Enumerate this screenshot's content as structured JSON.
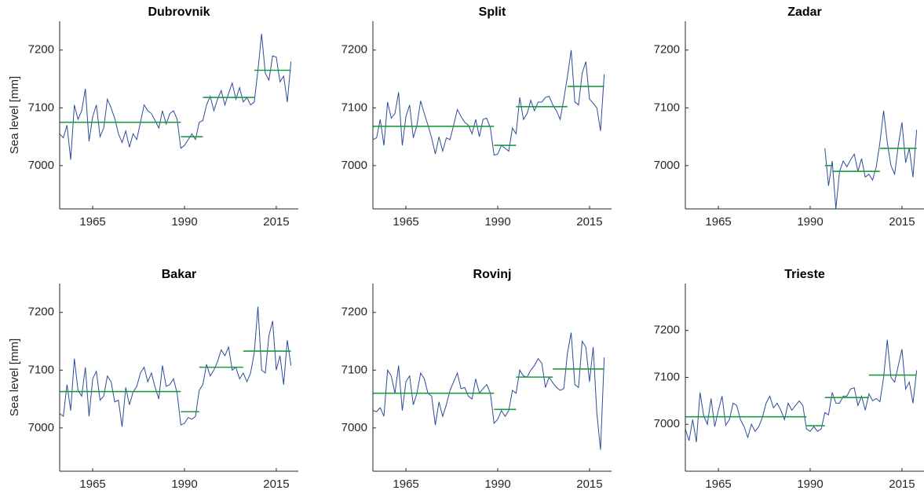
{
  "chart_data": [
    {
      "type": "line",
      "title": "Dubrovnik",
      "ylabel": "Sea level [mm]",
      "x": [
        1956,
        1957,
        1958,
        1959,
        1960,
        1961,
        1962,
        1963,
        1964,
        1965,
        1966,
        1967,
        1968,
        1969,
        1970,
        1971,
        1972,
        1973,
        1974,
        1975,
        1976,
        1977,
        1978,
        1979,
        1980,
        1981,
        1982,
        1983,
        1984,
        1985,
        1986,
        1987,
        1988,
        1989,
        1990,
        1991,
        1992,
        1993,
        1994,
        1995,
        1996,
        1997,
        1998,
        1999,
        2000,
        2001,
        2002,
        2003,
        2004,
        2005,
        2006,
        2007,
        2008,
        2009,
        2010,
        2011,
        2012,
        2013,
        2014,
        2015,
        2016,
        2017,
        2018,
        2019
      ],
      "series": [
        {
          "color": "#2a4d9b",
          "values": [
            7055,
            7048,
            7070,
            7010,
            7105,
            7080,
            7095,
            7133,
            7042,
            7085,
            7105,
            7050,
            7065,
            7115,
            7100,
            7082,
            7055,
            7040,
            7060,
            7032,
            7055,
            7045,
            7075,
            7105,
            7095,
            7090,
            7078,
            7065,
            7095,
            7072,
            7090,
            7095,
            7080,
            7030,
            7035,
            7045,
            7055,
            7045,
            7075,
            7078,
            7105,
            7120,
            7095,
            7115,
            7130,
            7105,
            7125,
            7143,
            7115,
            7135,
            7110,
            7118,
            7105,
            7110,
            7165,
            7228,
            7160,
            7148,
            7190,
            7188,
            7145,
            7155,
            7110,
            7180
          ]
        }
      ],
      "segments": [
        {
          "x": [
            1956,
            1989
          ],
          "value": 7075
        },
        {
          "x": [
            1989,
            1995
          ],
          "value": 7050
        },
        {
          "x": [
            1995,
            2009
          ],
          "value": 7118
        },
        {
          "x": [
            2009,
            2019
          ],
          "value": 7165
        }
      ],
      "segment_color": "#1a9c3e",
      "xlim": [
        1956,
        2021
      ],
      "xticks": [
        1965,
        1990,
        2015
      ],
      "ylim": [
        6925,
        7250
      ],
      "yticks": [
        7000,
        7100,
        7200
      ]
    },
    {
      "type": "line",
      "title": "Split",
      "x": [
        1956,
        1957,
        1958,
        1959,
        1960,
        1961,
        1962,
        1963,
        1964,
        1965,
        1966,
        1967,
        1968,
        1969,
        1970,
        1971,
        1972,
        1973,
        1974,
        1975,
        1976,
        1977,
        1978,
        1979,
        1980,
        1981,
        1982,
        1983,
        1984,
        1985,
        1986,
        1987,
        1988,
        1989,
        1990,
        1991,
        1992,
        1993,
        1994,
        1995,
        1996,
        1997,
        1998,
        1999,
        2000,
        2001,
        2002,
        2003,
        2004,
        2005,
        2006,
        2007,
        2008,
        2009,
        2010,
        2011,
        2012,
        2013,
        2014,
        2015,
        2016,
        2017,
        2018,
        2019
      ],
      "series": [
        {
          "color": "#2a4d9b",
          "values": [
            7045,
            7048,
            7080,
            7035,
            7110,
            7082,
            7090,
            7127,
            7035,
            7085,
            7105,
            7048,
            7070,
            7112,
            7090,
            7070,
            7048,
            7020,
            7050,
            7025,
            7048,
            7045,
            7070,
            7097,
            7085,
            7075,
            7070,
            7055,
            7080,
            7050,
            7080,
            7082,
            7065,
            7018,
            7020,
            7035,
            7030,
            7025,
            7065,
            7055,
            7118,
            7080,
            7090,
            7113,
            7095,
            7110,
            7110,
            7118,
            7120,
            7105,
            7095,
            7080,
            7115,
            7155,
            7200,
            7110,
            7105,
            7160,
            7180,
            7115,
            7108,
            7100,
            7060,
            7158
          ]
        }
      ],
      "segments": [
        {
          "x": [
            1956,
            1989
          ],
          "value": 7068
        },
        {
          "x": [
            1989,
            1995
          ],
          "value": 7035
        },
        {
          "x": [
            1995,
            2009
          ],
          "value": 7102
        },
        {
          "x": [
            2009,
            2019
          ],
          "value": 7137
        }
      ],
      "segment_color": "#1a9c3e",
      "xlim": [
        1956,
        2021
      ],
      "xticks": [
        1965,
        1990,
        2015
      ],
      "ylim": [
        6925,
        7250
      ],
      "yticks": [
        7000,
        7100,
        7200
      ]
    },
    {
      "type": "line",
      "title": "Zadar",
      "x": [
        1956,
        1957,
        1958,
        1959,
        1960,
        1961,
        1962,
        1963,
        1964,
        1965,
        1966,
        1967,
        1968,
        1969,
        1970,
        1971,
        1972,
        1973,
        1974,
        1975,
        1976,
        1977,
        1978,
        1979,
        1980,
        1981,
        1982,
        1983,
        1984,
        1985,
        1986,
        1987,
        1988,
        1989,
        1990,
        1991,
        1992,
        1993,
        1994,
        1995,
        1996,
        1997,
        1998,
        1999,
        2000,
        2001,
        2002,
        2003,
        2004,
        2005,
        2006,
        2007,
        2008,
        2009,
        2010,
        2011,
        2012,
        2013,
        2014,
        2015,
        2016,
        2017,
        2018,
        2019
      ],
      "series": [
        {
          "color": "#2a4d9b",
          "values": [
            null,
            null,
            null,
            null,
            null,
            null,
            null,
            null,
            null,
            null,
            null,
            null,
            null,
            null,
            null,
            null,
            null,
            null,
            null,
            null,
            null,
            null,
            null,
            null,
            null,
            null,
            null,
            null,
            null,
            null,
            null,
            null,
            null,
            null,
            null,
            null,
            null,
            null,
            7030,
            6965,
            7008,
            6925,
            6990,
            7008,
            6998,
            7010,
            7020,
            6990,
            7012,
            6980,
            6985,
            6975,
            6998,
            7040,
            7095,
            7040,
            7000,
            6985,
            7035,
            7075,
            7005,
            7030,
            6980,
            7062
          ]
        }
      ],
      "segments": [
        {
          "x": [
            1994,
            1996
          ],
          "value": 7000
        },
        {
          "x": [
            1996,
            2009
          ],
          "value": 6990
        },
        {
          "x": [
            2009,
            2019
          ],
          "value": 7030
        }
      ],
      "segment_color": "#1a9c3e",
      "xlim": [
        1956,
        2021
      ],
      "xticks": [
        1965,
        1990,
        2015
      ],
      "ylim": [
        6925,
        7250
      ],
      "yticks": [
        7000,
        7100,
        7200
      ]
    },
    {
      "type": "line",
      "title": "Bakar",
      "ylabel": "Sea level [mm]",
      "x": [
        1956,
        1957,
        1958,
        1959,
        1960,
        1961,
        1962,
        1963,
        1964,
        1965,
        1966,
        1967,
        1968,
        1969,
        1970,
        1971,
        1972,
        1973,
        1974,
        1975,
        1976,
        1977,
        1978,
        1979,
        1980,
        1981,
        1982,
        1983,
        1984,
        1985,
        1986,
        1987,
        1988,
        1989,
        1990,
        1991,
        1992,
        1993,
        1994,
        1995,
        1996,
        1997,
        1998,
        1999,
        2000,
        2001,
        2002,
        2003,
        2004,
        2005,
        2006,
        2007,
        2008,
        2009,
        2010,
        2011,
        2012,
        2013,
        2014,
        2015,
        2016,
        2017,
        2018,
        2019
      ],
      "series": [
        {
          "color": "#2a4d9b",
          "values": [
            7025,
            7020,
            7075,
            7030,
            7120,
            7065,
            7055,
            7105,
            7020,
            7085,
            7098,
            7048,
            7055,
            7090,
            7080,
            7045,
            7048,
            7002,
            7070,
            7040,
            7062,
            7072,
            7095,
            7105,
            7080,
            7095,
            7070,
            7050,
            7108,
            7072,
            7075,
            7085,
            7060,
            7005,
            7008,
            7018,
            7015,
            7020,
            7065,
            7075,
            7110,
            7090,
            7100,
            7115,
            7135,
            7125,
            7140,
            7100,
            7105,
            7085,
            7095,
            7080,
            7095,
            7130,
            7210,
            7100,
            7095,
            7160,
            7185,
            7100,
            7125,
            7075,
            7152,
            7108
          ]
        }
      ],
      "segments": [
        {
          "x": [
            1956,
            1989
          ],
          "value": 7063
        },
        {
          "x": [
            1989,
            1994
          ],
          "value": 7028
        },
        {
          "x": [
            1994,
            2006
          ],
          "value": 7105
        },
        {
          "x": [
            2006,
            2019
          ],
          "value": 7133
        }
      ],
      "segment_color": "#1a9c3e",
      "xlim": [
        1956,
        2021
      ],
      "xticks": [
        1965,
        1990,
        2015
      ],
      "ylim": [
        6925,
        7250
      ],
      "yticks": [
        7000,
        7100,
        7200
      ]
    },
    {
      "type": "line",
      "title": "Rovinj",
      "x": [
        1956,
        1957,
        1958,
        1959,
        1960,
        1961,
        1962,
        1963,
        1964,
        1965,
        1966,
        1967,
        1968,
        1969,
        1970,
        1971,
        1972,
        1973,
        1974,
        1975,
        1976,
        1977,
        1978,
        1979,
        1980,
        1981,
        1982,
        1983,
        1984,
        1985,
        1986,
        1987,
        1988,
        1989,
        1990,
        1991,
        1992,
        1993,
        1994,
        1995,
        1996,
        1997,
        1998,
        1999,
        2000,
        2001,
        2002,
        2003,
        2004,
        2005,
        2006,
        2007,
        2008,
        2009,
        2010,
        2011,
        2012,
        2013,
        2014,
        2015,
        2016,
        2017,
        2018,
        2019
      ],
      "series": [
        {
          "color": "#2a4d9b",
          "values": [
            7030,
            7028,
            7035,
            7020,
            7100,
            7090,
            7060,
            7108,
            7030,
            7080,
            7090,
            7040,
            7060,
            7095,
            7085,
            7060,
            7055,
            7005,
            7045,
            7020,
            7040,
            7065,
            7080,
            7095,
            7068,
            7070,
            7055,
            7050,
            7085,
            7060,
            7068,
            7075,
            7060,
            7008,
            7015,
            7030,
            7020,
            7030,
            7065,
            7060,
            7100,
            7090,
            7088,
            7100,
            7108,
            7120,
            7112,
            7070,
            7088,
            7078,
            7070,
            7065,
            7068,
            7130,
            7165,
            7075,
            7070,
            7150,
            7140,
            7080,
            7140,
            7025,
            6962,
            7122
          ]
        }
      ],
      "segments": [
        {
          "x": [
            1956,
            1989
          ],
          "value": 7060
        },
        {
          "x": [
            1989,
            1995
          ],
          "value": 7032
        },
        {
          "x": [
            1995,
            2005
          ],
          "value": 7088
        },
        {
          "x": [
            2005,
            2019
          ],
          "value": 7102
        }
      ],
      "segment_color": "#1a9c3e",
      "xlim": [
        1956,
        2021
      ],
      "xticks": [
        1965,
        1990,
        2015
      ],
      "ylim": [
        6925,
        7250
      ],
      "yticks": [
        7000,
        7100,
        7200
      ]
    },
    {
      "type": "line",
      "title": "Trieste",
      "x": [
        1956,
        1957,
        1958,
        1959,
        1960,
        1961,
        1962,
        1963,
        1964,
        1965,
        1966,
        1967,
        1968,
        1969,
        1970,
        1971,
        1972,
        1973,
        1974,
        1975,
        1976,
        1977,
        1978,
        1979,
        1980,
        1981,
        1982,
        1983,
        1984,
        1985,
        1986,
        1987,
        1988,
        1989,
        1990,
        1991,
        1992,
        1993,
        1994,
        1995,
        1996,
        1997,
        1998,
        1999,
        2000,
        2001,
        2002,
        2003,
        2004,
        2005,
        2006,
        2007,
        2008,
        2009,
        2010,
        2011,
        2012,
        2013,
        2014,
        2015,
        2016,
        2017,
        2018,
        2019
      ],
      "series": [
        {
          "color": "#2a4d9b",
          "values": [
            6990,
            6965,
            7010,
            6962,
            7068,
            7018,
            7000,
            7055,
            6995,
            7030,
            7060,
            6998,
            7010,
            7045,
            7040,
            7010,
            6995,
            6972,
            7000,
            6985,
            6995,
            7015,
            7045,
            7060,
            7035,
            7045,
            7030,
            7010,
            7045,
            7030,
            7040,
            7050,
            7040,
            6990,
            6985,
            6995,
            6985,
            6990,
            7025,
            7020,
            7068,
            7045,
            7045,
            7060,
            7060,
            7075,
            7078,
            7040,
            7060,
            7030,
            7065,
            7050,
            7055,
            7048,
            7100,
            7180,
            7100,
            7090,
            7125,
            7160,
            7075,
            7090,
            7045,
            7115
          ]
        }
      ],
      "segments": [
        {
          "x": [
            1956,
            1989
          ],
          "value": 7016
        },
        {
          "x": [
            1989,
            1994
          ],
          "value": 6997
        },
        {
          "x": [
            1994,
            2006
          ],
          "value": 7057
        },
        {
          "x": [
            2006,
            2019
          ],
          "value": 7105
        }
      ],
      "segment_color": "#1a9c3e",
      "xlim": [
        1956,
        2021
      ],
      "xticks": [
        1965,
        1990,
        2015
      ],
      "ylim": [
        6900,
        7300
      ],
      "yticks": [
        7000,
        7100,
        7200
      ]
    }
  ]
}
